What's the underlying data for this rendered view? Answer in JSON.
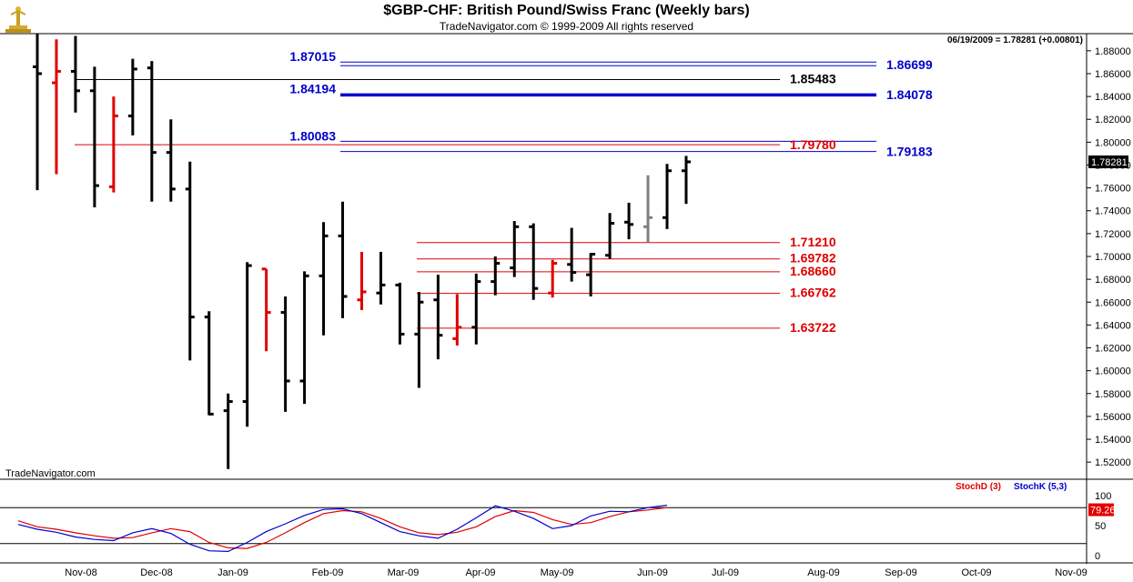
{
  "header": {
    "title": "$GBP-CHF:  British Pound/Swiss Franc  (Weekly bars)",
    "subtitle": "TradeNavigator.com © 1999-2009 All rights reserved"
  },
  "quote_line": "06/19/2009 = 1.78281 (+0.00801)",
  "watermark": "TradeNavigator.com",
  "last_price_label": "1.78281",
  "stoch_last_label": "79.26",
  "indicator_legend": {
    "stoch_d": "StochD (3)",
    "stoch_k": "StochK (5,3)"
  },
  "colors": {
    "bar": "#000000",
    "down_bar": "#e00000",
    "gray_bar": "#808080",
    "blue_level": "#0000cc",
    "red_level": "#e00000",
    "black_level": "#000000",
    "stoch_d": "#e00000",
    "stoch_k": "#0000cc"
  },
  "chart_data": [
    {
      "type": "ohlc",
      "title": "$GBP-CHF:  British Pound/Swiss Franc  (Weekly bars)",
      "x_labels": [
        "Nov-08",
        "Dec-08",
        "Jan-09",
        "Feb-09",
        "Mar-09",
        "Apr-09",
        "May-09",
        "Jun-09",
        "Jul-09",
        "Aug-09",
        "Sep-09",
        "Oct-09",
        "Nov-09"
      ],
      "y_ticks": [
        "1.52000",
        "1.54000",
        "1.56000",
        "1.58000",
        "1.60000",
        "1.62000",
        "1.64000",
        "1.66000",
        "1.68000",
        "1.70000",
        "1.72000",
        "1.74000",
        "1.76000",
        "1.78000",
        "1.80000",
        "1.82000",
        "1.84000",
        "1.86000",
        "1.88000"
      ],
      "ylim": [
        1.505,
        1.895
      ],
      "bars": [
        {
          "o": 1.866,
          "h": 1.9,
          "l": 1.758,
          "c": 1.86,
          "color": "black"
        },
        {
          "o": 1.852,
          "h": 1.89,
          "l": 1.772,
          "c": 1.862,
          "color": "red"
        },
        {
          "o": 1.862,
          "h": 1.893,
          "l": 1.826,
          "c": 1.845,
          "color": "black"
        },
        {
          "o": 1.845,
          "h": 1.866,
          "l": 1.743,
          "c": 1.762,
          "color": "black"
        },
        {
          "o": 1.761,
          "h": 1.84,
          "l": 1.756,
          "c": 1.823,
          "color": "red"
        },
        {
          "o": 1.823,
          "h": 1.873,
          "l": 1.806,
          "c": 1.864,
          "color": "black"
        },
        {
          "o": 1.865,
          "h": 1.871,
          "l": 1.748,
          "c": 1.791,
          "color": "black"
        },
        {
          "o": 1.791,
          "h": 1.82,
          "l": 1.748,
          "c": 1.759,
          "color": "black"
        },
        {
          "o": 1.759,
          "h": 1.783,
          "l": 1.609,
          "c": 1.647,
          "color": "black"
        },
        {
          "o": 1.647,
          "h": 1.652,
          "l": 1.561,
          "c": 1.562,
          "color": "black"
        },
        {
          "o": 1.565,
          "h": 1.58,
          "l": 1.514,
          "c": 1.573,
          "color": "black"
        },
        {
          "o": 1.573,
          "h": 1.695,
          "l": 1.551,
          "c": 1.692,
          "color": "black"
        },
        {
          "o": 1.689,
          "h": 1.689,
          "l": 1.617,
          "c": 1.651,
          "color": "red"
        },
        {
          "o": 1.651,
          "h": 1.665,
          "l": 1.564,
          "c": 1.591,
          "color": "black"
        },
        {
          "o": 1.591,
          "h": 1.687,
          "l": 1.571,
          "c": 1.683,
          "color": "black"
        },
        {
          "o": 1.683,
          "h": 1.73,
          "l": 1.631,
          "c": 1.718,
          "color": "black"
        },
        {
          "o": 1.718,
          "h": 1.748,
          "l": 1.646,
          "c": 1.665,
          "color": "black"
        },
        {
          "o": 1.662,
          "h": 1.704,
          "l": 1.653,
          "c": 1.669,
          "color": "red"
        },
        {
          "o": 1.668,
          "h": 1.704,
          "l": 1.658,
          "c": 1.675,
          "color": "black"
        },
        {
          "o": 1.675,
          "h": 1.677,
          "l": 1.623,
          "c": 1.632,
          "color": "black"
        },
        {
          "o": 1.632,
          "h": 1.669,
          "l": 1.585,
          "c": 1.66,
          "color": "black"
        },
        {
          "o": 1.662,
          "h": 1.684,
          "l": 1.61,
          "c": 1.631,
          "color": "black"
        },
        {
          "o": 1.628,
          "h": 1.667,
          "l": 1.622,
          "c": 1.638,
          "color": "red"
        },
        {
          "o": 1.638,
          "h": 1.685,
          "l": 1.623,
          "c": 1.678,
          "color": "black"
        },
        {
          "o": 1.678,
          "h": 1.7,
          "l": 1.666,
          "c": 1.694,
          "color": "black"
        },
        {
          "o": 1.69,
          "h": 1.731,
          "l": 1.682,
          "c": 1.726,
          "color": "black"
        },
        {
          "o": 1.726,
          "h": 1.729,
          "l": 1.662,
          "c": 1.672,
          "color": "black"
        },
        {
          "o": 1.668,
          "h": 1.697,
          "l": 1.664,
          "c": 1.694,
          "color": "red"
        },
        {
          "o": 1.693,
          "h": 1.725,
          "l": 1.678,
          "c": 1.686,
          "color": "black"
        },
        {
          "o": 1.684,
          "h": 1.703,
          "l": 1.665,
          "c": 1.702,
          "color": "black"
        },
        {
          "o": 1.701,
          "h": 1.738,
          "l": 1.698,
          "c": 1.729,
          "color": "black"
        },
        {
          "o": 1.73,
          "h": 1.747,
          "l": 1.715,
          "c": 1.728,
          "color": "black"
        },
        {
          "o": 1.726,
          "h": 1.771,
          "l": 1.712,
          "c": 1.734,
          "color": "gray"
        },
        {
          "o": 1.734,
          "h": 1.781,
          "l": 1.724,
          "c": 1.775,
          "color": "black"
        },
        {
          "o": 1.775,
          "h": 1.788,
          "l": 1.746,
          "c": 1.78281,
          "color": "black"
        }
      ],
      "levels": [
        {
          "value": 1.87015,
          "label": "1.87015",
          "color": "blue",
          "label_side": "left"
        },
        {
          "value": 1.86699,
          "label": "1.86699",
          "color": "blue",
          "label_side": "right"
        },
        {
          "value": 1.85483,
          "label": "1.85483",
          "color": "black",
          "label_side": "right"
        },
        {
          "value": 1.84194,
          "label": "1.84194",
          "color": "blue",
          "label_side": "left"
        },
        {
          "value": 1.84078,
          "label": "1.84078",
          "color": "blue",
          "label_side": "right"
        },
        {
          "value": 1.80083,
          "label": "1.80083",
          "color": "blue",
          "label_side": "left"
        },
        {
          "value": 1.7978,
          "label": "1.79780",
          "color": "red",
          "label_side": "right"
        },
        {
          "value": 1.79183,
          "label": "1.79183",
          "color": "blue",
          "label_side": "right"
        },
        {
          "value": 1.7121,
          "label": "1.71210",
          "color": "red",
          "label_side": "right"
        },
        {
          "value": 1.69782,
          "label": "1.69782",
          "color": "red",
          "label_side": "right"
        },
        {
          "value": 1.6866,
          "label": "1.68660",
          "color": "red",
          "label_side": "right"
        },
        {
          "value": 1.66762,
          "label": "1.66762",
          "color": "red",
          "label_side": "right"
        },
        {
          "value": 1.63722,
          "label": "1.63722",
          "color": "red",
          "label_side": "right"
        }
      ]
    },
    {
      "type": "line",
      "title": "",
      "y_ticks": [
        "0",
        "50",
        "100"
      ],
      "ylim": [
        0,
        100
      ],
      "reference_lines": [
        80,
        20
      ],
      "series": [
        {
          "name": "StochD (3)",
          "color": "red",
          "values": [
            58,
            48,
            44,
            38,
            33,
            29,
            30,
            38,
            45,
            40,
            22,
            13,
            12,
            22,
            38,
            55,
            70,
            75,
            73,
            62,
            48,
            38,
            35,
            39,
            48,
            65,
            75,
            72,
            60,
            52,
            55,
            65,
            73,
            76,
            80
          ]
        },
        {
          "name": "StochK (5,3)",
          "color": "blue",
          "values": [
            52,
            44,
            39,
            31,
            27,
            25,
            38,
            45,
            37,
            19,
            8,
            7,
            22,
            40,
            53,
            67,
            77,
            78,
            70,
            55,
            40,
            33,
            29,
            44,
            63,
            83,
            74,
            62,
            45,
            50,
            66,
            74,
            73,
            80,
            84
          ]
        }
      ]
    }
  ]
}
